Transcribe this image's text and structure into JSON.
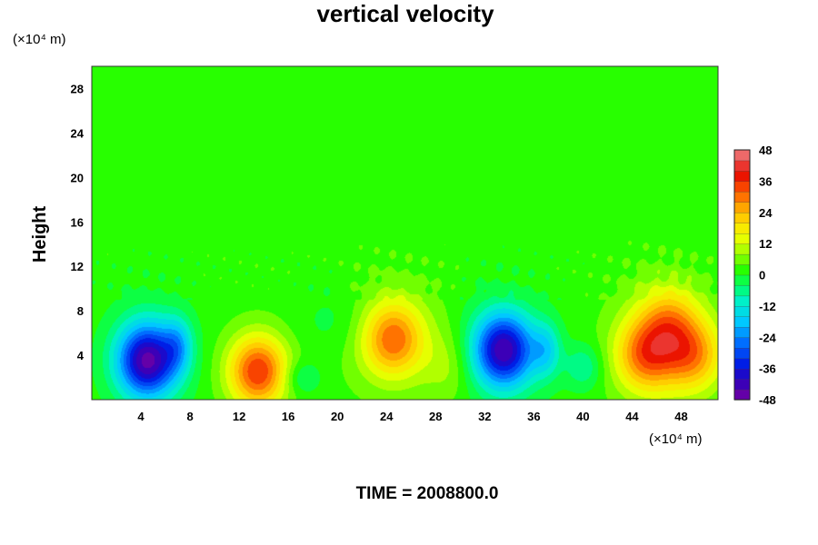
{
  "chart_data": {
    "type": "heatmap",
    "title": "vertical velocity",
    "ylabel": "Height",
    "xunit": "(×10⁴ m)",
    "yunit": "(×10⁴ m)",
    "xlim": [
      0,
      51
    ],
    "ylim": [
      0,
      30
    ],
    "xticks": [
      4,
      8,
      12,
      16,
      20,
      24,
      28,
      32,
      36,
      40,
      44,
      48
    ],
    "yticks": [
      4,
      8,
      12,
      16,
      20,
      24,
      28
    ],
    "colorbar": {
      "range": [
        -48,
        48
      ],
      "step": 4,
      "ticks": [
        48,
        36,
        24,
        12,
        0,
        -12,
        -24,
        -36,
        -48
      ],
      "colormap": "rainbow"
    },
    "features": [
      {
        "x": 4.5,
        "y": 3.5,
        "value": -38
      },
      {
        "x": 13.5,
        "y": 2.5,
        "value": 28
      },
      {
        "x": 24.5,
        "y": 5.5,
        "value": 22
      },
      {
        "x": 33.5,
        "y": 4.5,
        "value": -36
      },
      {
        "x": 45,
        "y": 4,
        "value": 22
      },
      {
        "x": 49,
        "y": 4,
        "value": 20
      },
      {
        "x": 47,
        "y": 7,
        "value": 16
      }
    ],
    "footer": "TIME = 2008800.0"
  }
}
